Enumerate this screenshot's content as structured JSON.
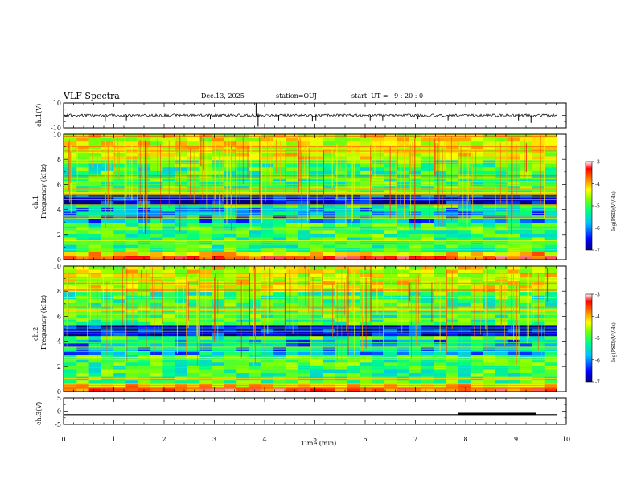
{
  "header": {
    "title": "VLF Spectra",
    "date": "Dec.13, 2025",
    "station": "station=OUJ",
    "start": "start  UT =   9 : 20 : 0"
  },
  "colors": {
    "axis": "#000000",
    "trace": "#000000",
    "colormap": [
      "#000080",
      "#0000ff",
      "#00bfff",
      "#00ff80",
      "#80ff00",
      "#ffff00",
      "#ff8000",
      "#ff0000",
      "#ffffff"
    ]
  },
  "chart_data": [
    {
      "type": "line",
      "id": "ch1-waveform",
      "ylabel": "ch.1(V)",
      "ylim": [
        -10,
        10
      ],
      "yticks": [
        "10",
        "-10"
      ],
      "xlim": [
        0,
        10
      ],
      "baseline_value": 0,
      "spikes": [
        {
          "t": 0.83,
          "v": -5
        },
        {
          "t": 1.25,
          "v": -4
        },
        {
          "t": 1.72,
          "v": -4
        },
        {
          "t": 2.92,
          "v": -3
        },
        {
          "t": 3.83,
          "v": 10
        },
        {
          "t": 3.87,
          "v": -9
        },
        {
          "t": 4.28,
          "v": -4
        },
        {
          "t": 4.95,
          "v": -5
        },
        {
          "t": 5.02,
          "v": -4
        },
        {
          "t": 6.1,
          "v": -4
        },
        {
          "t": 6.35,
          "v": -4
        },
        {
          "t": 7.05,
          "v": -3
        },
        {
          "t": 7.65,
          "v": -4
        },
        {
          "t": 9.05,
          "v": -4
        },
        {
          "t": 9.3,
          "v": -6
        }
      ]
    },
    {
      "type": "heatmap",
      "id": "ch1-spectrogram",
      "ylabel_top": "ch.1",
      "ylabel_bottom": "Frequency (kHz)",
      "ylim": [
        0,
        10
      ],
      "yticks": [
        "0",
        "2",
        "4",
        "6",
        "8",
        "10"
      ],
      "xlim": [
        0,
        10
      ],
      "colorbar": {
        "label": "log(PSD)(V²/Hz)",
        "range": [
          -7,
          -3
        ],
        "ticks": [
          "-3",
          "-4",
          "-5",
          "-6",
          "-7"
        ]
      }
    },
    {
      "type": "heatmap",
      "id": "ch2-spectrogram",
      "ylabel_top": "ch.2",
      "ylabel_bottom": "Frequency (kHz)",
      "ylim": [
        0,
        10
      ],
      "yticks": [
        "0",
        "2",
        "4",
        "6",
        "8",
        "10"
      ],
      "xlim": [
        0,
        10
      ],
      "colorbar": {
        "label": "log(PSD)(V²/Hz)",
        "range": [
          -7,
          -3
        ],
        "ticks": [
          "-3",
          "-4",
          "-5",
          "-6",
          "-7"
        ]
      }
    },
    {
      "type": "line",
      "id": "ch3-trace",
      "ylabel": "ch.3(V)",
      "ylim": [
        -5,
        5
      ],
      "yticks": [
        "5",
        "0",
        "-5"
      ],
      "xlim": [
        0,
        10
      ],
      "level": -1.3,
      "raised_segment": {
        "t_start": 7.85,
        "t_end": 9.4,
        "level": -1.0
      },
      "xlabel": "Time (min)",
      "xticks": [
        "0",
        "1",
        "2",
        "3",
        "4",
        "5",
        "6",
        "7",
        "8",
        "9",
        "10"
      ]
    }
  ]
}
